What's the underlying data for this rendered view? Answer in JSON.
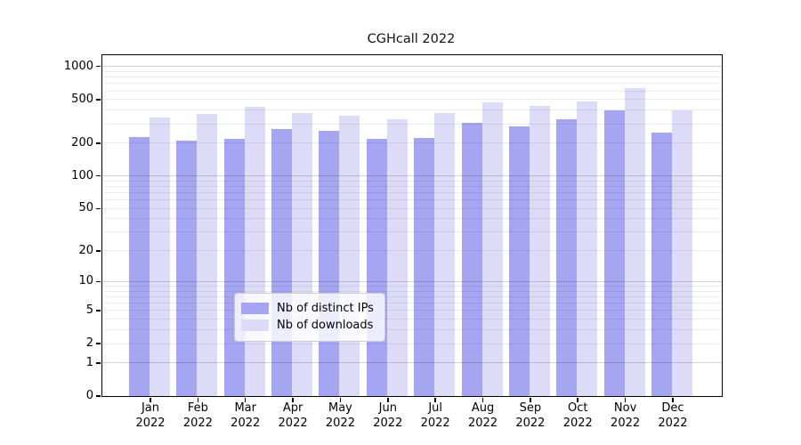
{
  "title": "CGHcall 2022",
  "legend": {
    "items": [
      {
        "label": "Nb of distinct IPs",
        "color": "#a5a5f2"
      },
      {
        "label": "Nb of downloads",
        "color": "#dcdcf8"
      }
    ]
  },
  "y_axis": {
    "tick_labels": [
      "0",
      "1",
      "2",
      "5",
      "10",
      "20",
      "50",
      "100",
      "200",
      "500",
      "1000"
    ]
  },
  "x_axis": {
    "year": "2022",
    "months": [
      "Jan",
      "Feb",
      "Mar",
      "Apr",
      "May",
      "Jun",
      "Jul",
      "Aug",
      "Sep",
      "Oct",
      "Nov",
      "Dec"
    ]
  },
  "chart_data": {
    "type": "bar",
    "title": "CGHcall 2022",
    "categories": [
      "Jan 2022",
      "Feb 2022",
      "Mar 2022",
      "Apr 2022",
      "May 2022",
      "Jun 2022",
      "Jul 2022",
      "Aug 2022",
      "Sep 2022",
      "Oct 2022",
      "Nov 2022",
      "Dec 2022"
    ],
    "series": [
      {
        "name": "Nb of distinct IPs",
        "color": "#a5a5f2",
        "values": [
          225,
          211,
          218,
          268,
          257,
          220,
          221,
          307,
          285,
          330,
          395,
          248
        ]
      },
      {
        "name": "Nb of downloads",
        "color": "#dcdcf8",
        "values": [
          343,
          370,
          427,
          374,
          359,
          330,
          377,
          470,
          437,
          481,
          630,
          395
        ]
      }
    ],
    "yscale": "log1p",
    "yticks": [
      0,
      1,
      2,
      5,
      10,
      20,
      50,
      100,
      200,
      500,
      1000
    ],
    "ylim": [
      0,
      1268
    ],
    "xlabel": "",
    "ylabel": "",
    "grid": "horizontal log minor+major, drawn over bars",
    "legend_position": "lower center inside plot"
  }
}
